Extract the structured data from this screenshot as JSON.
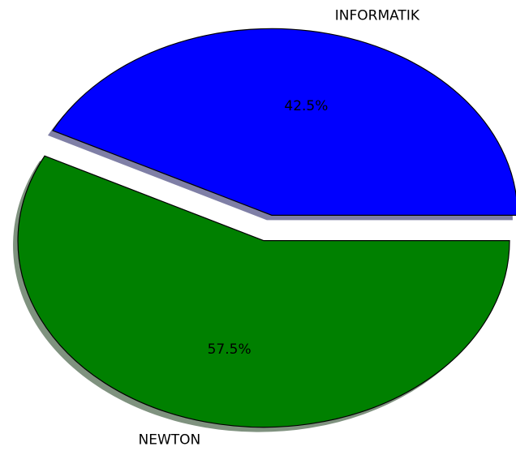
{
  "chart_data": {
    "type": "pie",
    "categories": [
      "INFORMATIK",
      "NEWTON"
    ],
    "values": [
      42.5,
      57.5
    ],
    "value_labels": [
      "42.5%",
      "57.5%"
    ],
    "colors": [
      "#0000ff",
      "#008000"
    ],
    "shadow": true
  }
}
